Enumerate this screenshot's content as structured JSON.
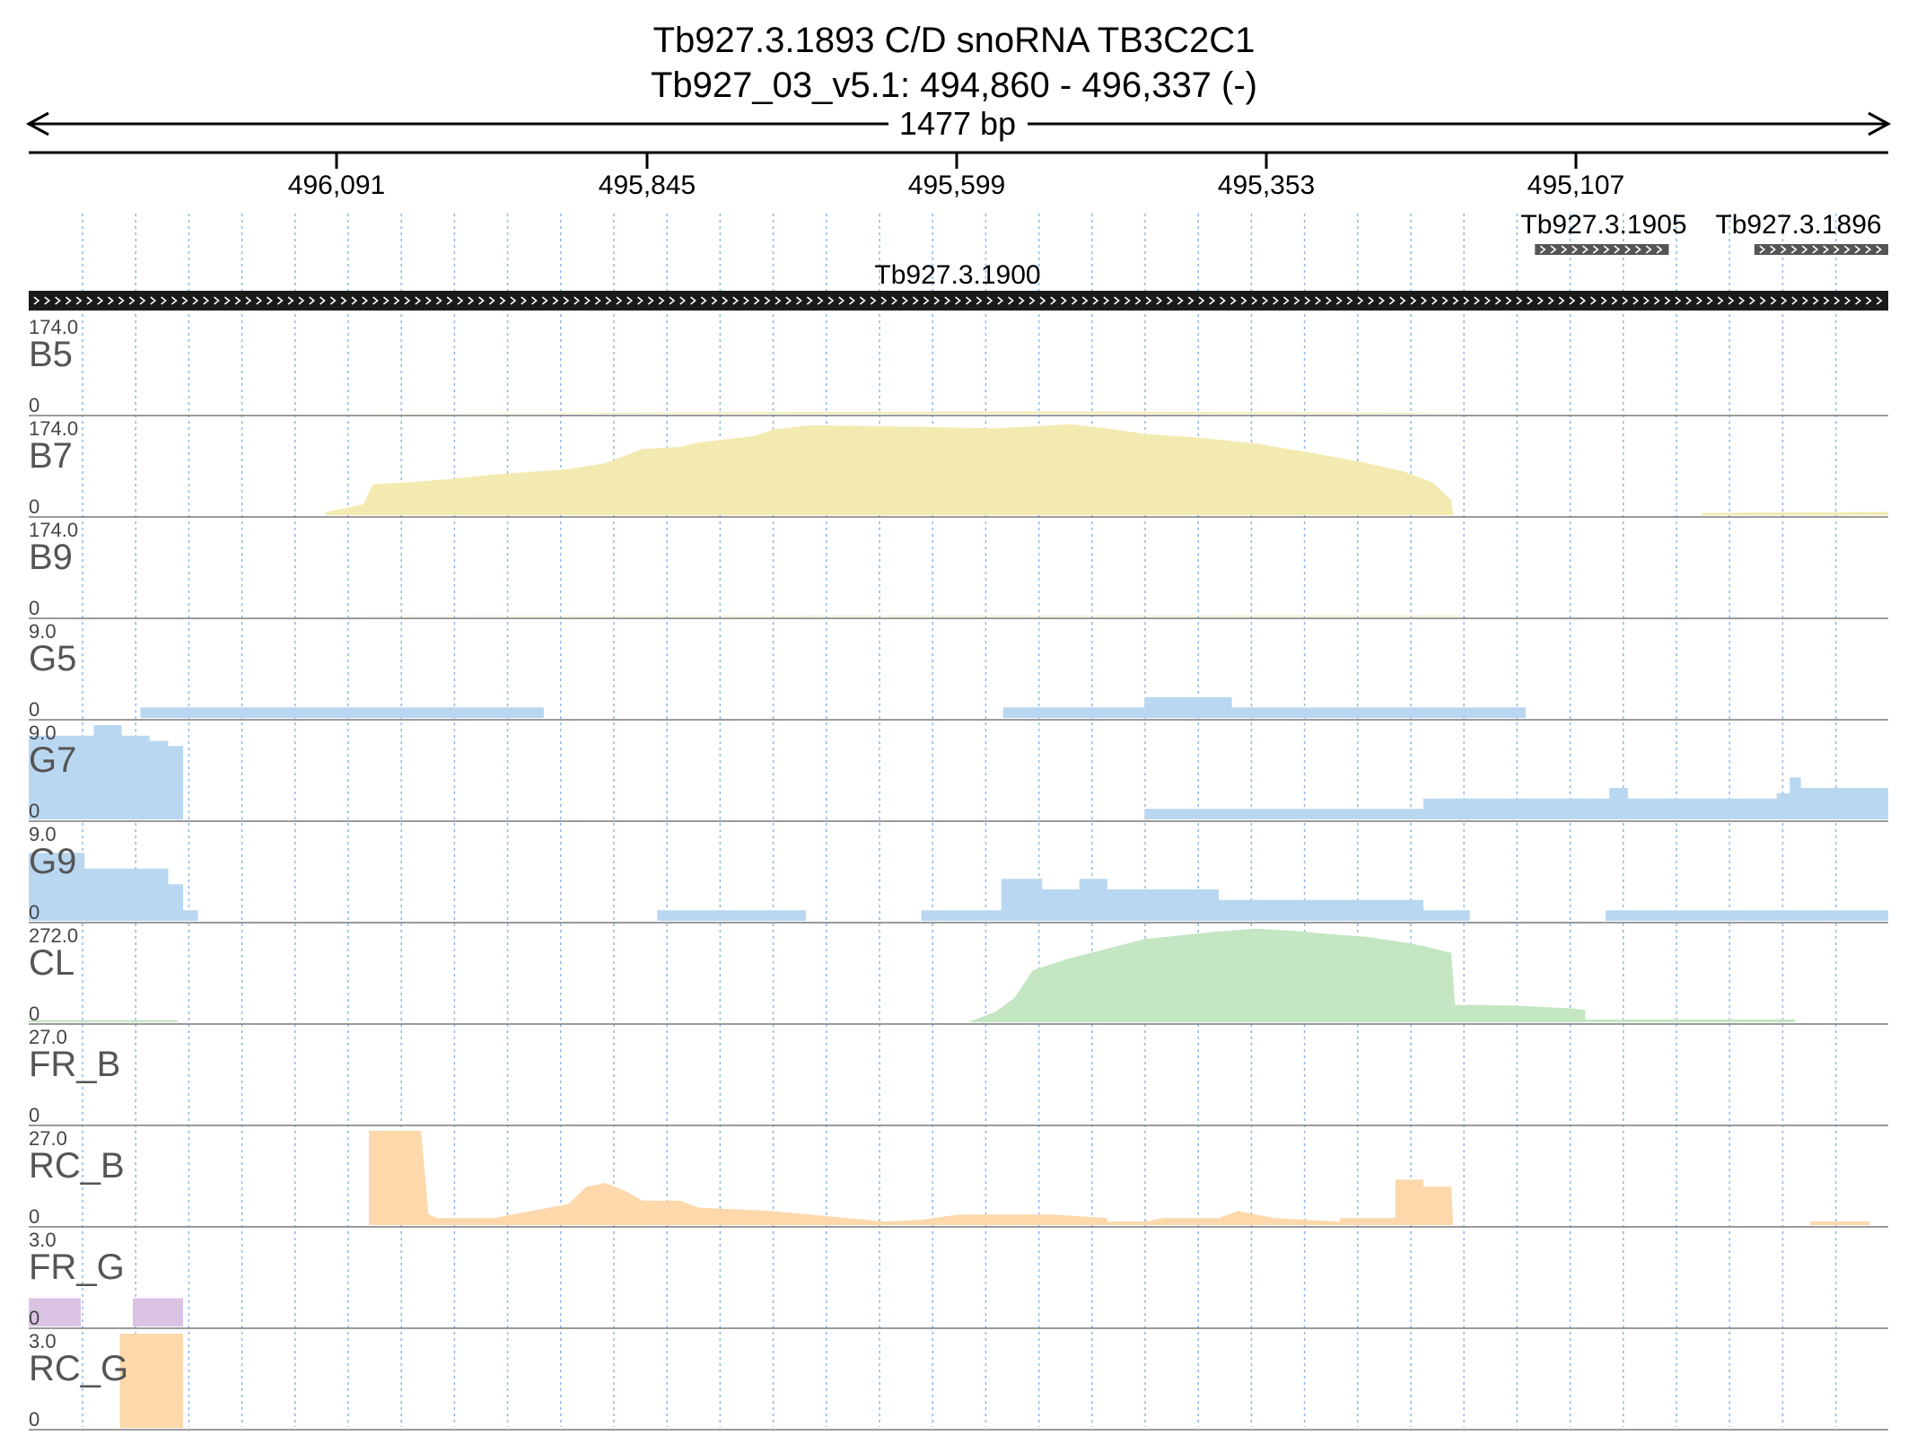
{
  "header": {
    "title_line1": "Tb927.3.1893  C/D snoRNA  TB3C2C1",
    "title_line2": "Tb927_03_v5.1: 494,860 - 496,337 (-)",
    "span_label": "1477 bp"
  },
  "axis": {
    "ticks": [
      "496,091",
      "495,845",
      "495,599",
      "495,353",
      "495,107"
    ]
  },
  "genes": [
    {
      "id": "Tb927.3.1900",
      "strand": "+",
      "start_frac": 0.0,
      "end_frac": 1.0
    },
    {
      "id": "Tb927.3.1905",
      "strand": "+",
      "start_frac": 0.81,
      "end_frac": 0.882
    },
    {
      "id": "Tb927.3.1896",
      "strand": "+",
      "start_frac": 0.928,
      "end_frac": 1.0
    }
  ],
  "colors": {
    "bloodstream": "#f2eab0",
    "bloodstream_faint": "#efe6b3",
    "gene_bar": "#1a1a1a",
    "small_gene_bar": "#555555",
    "blue": "#b9d7f0",
    "green": "#c4e6c3",
    "orange": "#fcd8ab",
    "purple": "#dbc3e4",
    "grid": "#8fb6e6",
    "separator": "#7a7a7a"
  },
  "chart_data": {
    "type": "area",
    "x_unit": "relative position along locus (0 = 496,337, 1 = 494,860)",
    "tracks": [
      {
        "name": "B5",
        "max_label": "174.0",
        "min_label": "0",
        "color": "bloodstream",
        "points": [
          [
            0.18,
            0
          ],
          [
            0.18,
            0.5
          ],
          [
            0.3,
            1.5
          ],
          [
            0.4,
            3
          ],
          [
            0.55,
            4
          ],
          [
            0.65,
            3
          ],
          [
            0.72,
            2
          ],
          [
            0.77,
            1
          ],
          [
            0.77,
            0
          ]
        ]
      },
      {
        "name": "B7",
        "max_label": "174.0",
        "min_label": "0",
        "color": "bloodstream",
        "points": [
          [
            0.16,
            0
          ],
          [
            0.16,
            6
          ],
          [
            0.17,
            13
          ],
          [
            0.18,
            20
          ],
          [
            0.185,
            57
          ],
          [
            0.21,
            62
          ],
          [
            0.23,
            68
          ],
          [
            0.25,
            75
          ],
          [
            0.27,
            80
          ],
          [
            0.29,
            85
          ],
          [
            0.31,
            96
          ],
          [
            0.33,
            122
          ],
          [
            0.35,
            126
          ],
          [
            0.36,
            134
          ],
          [
            0.39,
            146
          ],
          [
            0.4,
            158
          ],
          [
            0.42,
            166
          ],
          [
            0.48,
            163
          ],
          [
            0.52,
            160
          ],
          [
            0.56,
            168
          ],
          [
            0.58,
            160
          ],
          [
            0.6,
            150
          ],
          [
            0.63,
            143
          ],
          [
            0.66,
            132
          ],
          [
            0.69,
            115
          ],
          [
            0.72,
            96
          ],
          [
            0.74,
            80
          ],
          [
            0.755,
            60
          ],
          [
            0.765,
            28
          ],
          [
            0.766,
            0
          ],
          [
            0.9,
            0
          ],
          [
            0.9,
            4
          ],
          [
            1.0,
            6
          ],
          [
            1.0,
            0
          ]
        ]
      },
      {
        "name": "B9",
        "max_label": "174.0",
        "min_label": "0",
        "color": "bloodstream_faint",
        "points": [
          [
            0.18,
            0
          ],
          [
            0.18,
            0.8
          ],
          [
            0.77,
            1.5
          ],
          [
            0.77,
            0
          ]
        ]
      },
      {
        "name": "G5",
        "max_label": "9.0",
        "min_label": "0",
        "color": "blue",
        "points": [
          [
            0.06,
            0
          ],
          [
            0.06,
            1
          ],
          [
            0.277,
            1
          ],
          [
            0.277,
            0
          ],
          [
            0.524,
            0
          ],
          [
            0.524,
            1
          ],
          [
            0.6,
            1
          ],
          [
            0.6,
            2
          ],
          [
            0.647,
            2
          ],
          [
            0.647,
            1
          ],
          [
            0.805,
            1
          ],
          [
            0.805,
            0
          ]
        ]
      },
      {
        "name": "G7",
        "max_label": "9.0",
        "min_label": "0",
        "color": "blue",
        "points": [
          [
            0.0,
            0
          ],
          [
            0.0,
            8
          ],
          [
            0.035,
            8
          ],
          [
            0.035,
            9
          ],
          [
            0.05,
            9
          ],
          [
            0.05,
            8
          ],
          [
            0.065,
            8
          ],
          [
            0.065,
            7.5
          ],
          [
            0.075,
            7.5
          ],
          [
            0.075,
            7
          ],
          [
            0.083,
            7
          ],
          [
            0.083,
            0
          ],
          [
            0.6,
            0
          ],
          [
            0.6,
            1
          ],
          [
            0.75,
            1
          ],
          [
            0.75,
            2
          ],
          [
            0.85,
            2
          ],
          [
            0.85,
            3
          ],
          [
            0.86,
            3
          ],
          [
            0.86,
            2
          ],
          [
            0.94,
            2
          ],
          [
            0.94,
            2.5
          ],
          [
            0.947,
            2.5
          ],
          [
            0.947,
            4
          ],
          [
            0.953,
            4
          ],
          [
            0.953,
            3
          ],
          [
            1.0,
            3
          ],
          [
            1.0,
            0
          ]
        ]
      },
      {
        "name": "G9",
        "max_label": "9.0",
        "min_label": "0",
        "color": "blue",
        "points": [
          [
            0.0,
            0
          ],
          [
            0.0,
            6.5
          ],
          [
            0.03,
            6.5
          ],
          [
            0.03,
            5
          ],
          [
            0.075,
            5
          ],
          [
            0.075,
            3.5
          ],
          [
            0.083,
            3.5
          ],
          [
            0.083,
            1
          ],
          [
            0.091,
            1
          ],
          [
            0.091,
            0
          ],
          [
            0.338,
            0
          ],
          [
            0.338,
            1
          ],
          [
            0.418,
            1
          ],
          [
            0.418,
            0
          ],
          [
            0.48,
            0
          ],
          [
            0.48,
            1
          ],
          [
            0.523,
            1
          ],
          [
            0.523,
            4
          ],
          [
            0.545,
            4
          ],
          [
            0.545,
            3
          ],
          [
            0.565,
            3
          ],
          [
            0.565,
            4
          ],
          [
            0.58,
            4
          ],
          [
            0.58,
            3
          ],
          [
            0.64,
            3
          ],
          [
            0.64,
            2
          ],
          [
            0.75,
            2
          ],
          [
            0.75,
            1
          ],
          [
            0.775,
            1
          ],
          [
            0.775,
            0
          ],
          [
            0.848,
            0
          ],
          [
            0.848,
            1
          ],
          [
            1.0,
            1
          ],
          [
            1.0,
            0
          ]
        ]
      },
      {
        "name": "CL",
        "max_label": "272.0",
        "min_label": "0",
        "color": "green",
        "points": [
          [
            0.0,
            0
          ],
          [
            0.0,
            6
          ],
          [
            0.08,
            6
          ],
          [
            0.08,
            0
          ],
          [
            0.505,
            0
          ],
          [
            0.51,
            10
          ],
          [
            0.52,
            30
          ],
          [
            0.53,
            70
          ],
          [
            0.54,
            150
          ],
          [
            0.56,
            185
          ],
          [
            0.6,
            240
          ],
          [
            0.64,
            262
          ],
          [
            0.66,
            270
          ],
          [
            0.68,
            264
          ],
          [
            0.7,
            254
          ],
          [
            0.72,
            246
          ],
          [
            0.74,
            230
          ],
          [
            0.75,
            220
          ],
          [
            0.765,
            200
          ],
          [
            0.767,
            50
          ],
          [
            0.8,
            48
          ],
          [
            0.83,
            40
          ],
          [
            0.837,
            35
          ],
          [
            0.837,
            8
          ],
          [
            0.95,
            8
          ],
          [
            0.95,
            0
          ]
        ]
      },
      {
        "name": "FR_B",
        "max_label": "27.0",
        "min_label": "0",
        "color": "orange",
        "points": []
      },
      {
        "name": "RC_B",
        "max_label": "27.0",
        "min_label": "0",
        "color": "orange",
        "points": [
          [
            0.183,
            0
          ],
          [
            0.183,
            27
          ],
          [
            0.211,
            27
          ],
          [
            0.215,
            3
          ],
          [
            0.22,
            2
          ],
          [
            0.25,
            2
          ],
          [
            0.26,
            3
          ],
          [
            0.27,
            4
          ],
          [
            0.28,
            5
          ],
          [
            0.29,
            6
          ],
          [
            0.3,
            11
          ],
          [
            0.31,
            12
          ],
          [
            0.32,
            10
          ],
          [
            0.33,
            7
          ],
          [
            0.35,
            7
          ],
          [
            0.36,
            5
          ],
          [
            0.4,
            4
          ],
          [
            0.42,
            3
          ],
          [
            0.44,
            2
          ],
          [
            0.46,
            1
          ],
          [
            0.46,
            0
          ],
          [
            0.46,
            1
          ],
          [
            0.48,
            1.5
          ],
          [
            0.5,
            3
          ],
          [
            0.52,
            3
          ],
          [
            0.55,
            3
          ],
          [
            0.58,
            2
          ],
          [
            0.58,
            1
          ],
          [
            0.6,
            1
          ],
          [
            0.61,
            2
          ],
          [
            0.64,
            2
          ],
          [
            0.65,
            4
          ],
          [
            0.66,
            3
          ],
          [
            0.67,
            2
          ],
          [
            0.705,
            1
          ],
          [
            0.705,
            2
          ],
          [
            0.735,
            2
          ],
          [
            0.735,
            13
          ],
          [
            0.75,
            13
          ],
          [
            0.75,
            11
          ],
          [
            0.765,
            11
          ],
          [
            0.766,
            0
          ],
          [
            0.958,
            0
          ],
          [
            0.958,
            1
          ],
          [
            0.99,
            1
          ],
          [
            0.99,
            0
          ]
        ]
      },
      {
        "name": "FR_G",
        "max_label": "3.0",
        "min_label": "0",
        "color": "purple",
        "points": [
          [
            0.0,
            0
          ],
          [
            0.0,
            0.9
          ],
          [
            0.028,
            0.9
          ],
          [
            0.028,
            0
          ],
          [
            0.056,
            0
          ],
          [
            0.056,
            0.9
          ],
          [
            0.083,
            0.9
          ],
          [
            0.083,
            0
          ]
        ]
      },
      {
        "name": "RC_G",
        "max_label": "3.0",
        "min_label": "0",
        "color": "orange",
        "points": [
          [
            0.049,
            0
          ],
          [
            0.049,
            3
          ],
          [
            0.083,
            3
          ],
          [
            0.083,
            0
          ]
        ]
      }
    ]
  }
}
